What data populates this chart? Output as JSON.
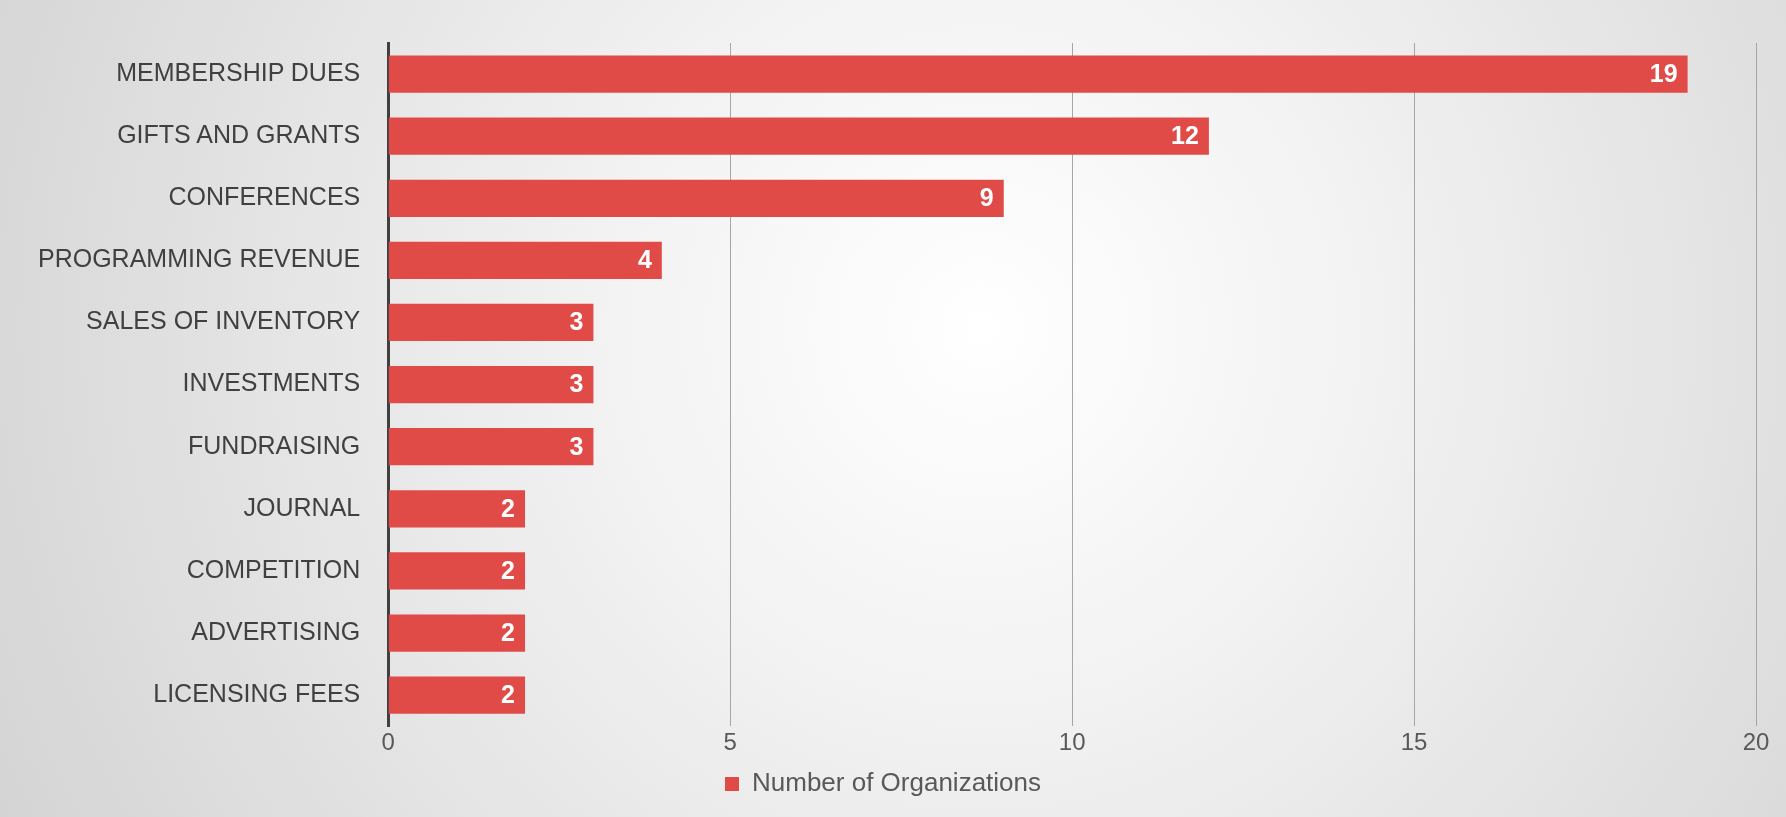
{
  "chart_data": {
    "type": "bar",
    "orientation": "horizontal",
    "categories": [
      "MEMBERSHIP DUES",
      "GIFTS AND GRANTS",
      "CONFERENCES",
      "PROGRAMMING REVENUE",
      "SALES OF INVENTORY",
      "INVESTMENTS",
      "FUNDRAISING",
      "JOURNAL",
      "COMPETITION",
      "ADVERTISING",
      "LICENSING FEES"
    ],
    "series": [
      {
        "name": "Number of Organizations",
        "color": "#e04b48",
        "values": [
          19,
          12,
          9,
          4,
          3,
          3,
          3,
          2,
          2,
          2,
          2
        ]
      }
    ],
    "xlim": [
      0,
      20
    ],
    "xticks": [
      0,
      5,
      10,
      15,
      20
    ],
    "grid": "x",
    "legend": "bottom",
    "data_labels": true
  }
}
